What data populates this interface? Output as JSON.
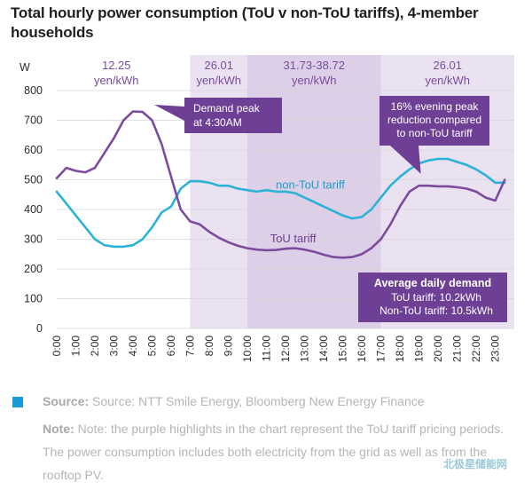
{
  "title": "Total hourly power consumption (ToU v non-ToU tariffs), 4-member households",
  "chart_data": {
    "type": "line",
    "title": "Total hourly power consumption (ToU v non-ToU tariffs), 4-member households",
    "ylabel": "W",
    "xlabel": "",
    "ylim": [
      0,
      800
    ],
    "yticks": [
      "0",
      "100",
      "200",
      "300",
      "400",
      "500",
      "600",
      "700",
      "800"
    ],
    "xlim": [
      0,
      24
    ],
    "categories": [
      "0:00",
      "1:00",
      "2:00",
      "3:00",
      "4:00",
      "5:00",
      "6:00",
      "7:00",
      "8:00",
      "9:00",
      "10:00",
      "11:00",
      "12:00",
      "13:00",
      "14:00",
      "15:00",
      "16:00",
      "17:00",
      "18:00",
      "19:00",
      "20:00",
      "21:00",
      "22:00",
      "23:00"
    ],
    "grid": true,
    "series": [
      {
        "name": "non-ToU tariff",
        "color": "#2bb3d6",
        "x": [
          0,
          0.5,
          1,
          1.5,
          2,
          2.5,
          3,
          3.5,
          4,
          4.5,
          5,
          5.5,
          6,
          6.5,
          7,
          7.5,
          8,
          8.5,
          9,
          9.5,
          10,
          10.5,
          11,
          11.5,
          12,
          12.5,
          13,
          13.5,
          14,
          14.5,
          15,
          15.5,
          16,
          16.5,
          17,
          17.5,
          18,
          18.5,
          19,
          19.5,
          20,
          20.5,
          21,
          21.5,
          22,
          22.5,
          23,
          23.5
        ],
        "values": [
          460,
          420,
          380,
          340,
          300,
          280,
          275,
          275,
          280,
          300,
          340,
          390,
          410,
          470,
          495,
          495,
          490,
          480,
          480,
          470,
          465,
          460,
          465,
          460,
          460,
          455,
          440,
          425,
          410,
          395,
          380,
          370,
          375,
          400,
          440,
          480,
          510,
          535,
          555,
          565,
          570,
          570,
          560,
          550,
          535,
          515,
          490,
          490
        ]
      },
      {
        "name": "ToU tariff",
        "color": "#7d4b9e",
        "x": [
          0,
          0.5,
          1,
          1.5,
          2,
          2.5,
          3,
          3.5,
          4,
          4.5,
          5,
          5.5,
          6,
          6.5,
          7,
          7.5,
          8,
          8.5,
          9,
          9.5,
          10,
          10.5,
          11,
          11.5,
          12,
          12.5,
          13,
          13.5,
          14,
          14.5,
          15,
          15.5,
          16,
          16.5,
          17,
          17.5,
          18,
          18.5,
          19,
          19.5,
          20,
          20.5,
          21,
          21.5,
          22,
          22.5,
          23,
          23.5
        ],
        "values": [
          505,
          540,
          530,
          525,
          540,
          590,
          640,
          700,
          730,
          728,
          700,
          620,
          510,
          400,
          360,
          350,
          325,
          305,
          290,
          278,
          270,
          265,
          263,
          264,
          268,
          270,
          265,
          258,
          248,
          240,
          238,
          240,
          250,
          270,
          300,
          350,
          410,
          460,
          480,
          480,
          478,
          478,
          475,
          470,
          460,
          440,
          430,
          500
        ]
      }
    ],
    "price_bands": [
      {
        "from": 0,
        "to": 7,
        "label": "12.25 yen/kWh",
        "shade": "#ffffff"
      },
      {
        "from": 7,
        "to": 10,
        "label": "26.01 yen/kWh",
        "shade": "#ebe2f1"
      },
      {
        "from": 10,
        "to": 17,
        "label": "31.73-38.72 yen/kWh",
        "shade": "#ddcfe8"
      },
      {
        "from": 17,
        "to": 24,
        "label": "26.01 yen/kWh",
        "shade": "#ebe2f1"
      }
    ],
    "annotations": [
      {
        "text": "Demand peak at 4:30AM"
      },
      {
        "text": "16% evening peak reduction compared to non-ToU tariff"
      }
    ],
    "legend_box": {
      "title": "Average daily demand",
      "lines": [
        "ToU tariff: 10.2kWh",
        "Non-ToU tariff: 10.5kWh"
      ]
    }
  },
  "source": {
    "label": "Source:",
    "text": " Source: NTT Smile Energy, Bloomberg New Energy Finance",
    "color": "#1a9bd7"
  },
  "note": {
    "label": "Note:",
    "text": " Note: the purple highlights in the chart represent the ToU tariff pricing periods. The power consumption includes both electricity from the grid as well as from the rooftop PV."
  },
  "watermark": "北极星储能网"
}
